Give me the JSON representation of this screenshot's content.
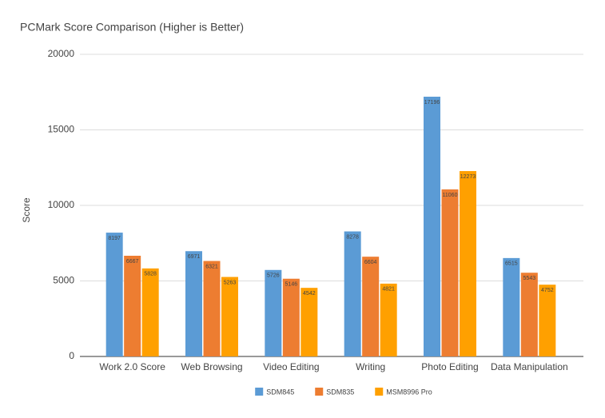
{
  "chart_data": {
    "type": "bar",
    "title": "PCMark Score Comparison (Higher is Better)",
    "y_label": "Score",
    "categories": [
      "Work 2.0 Score",
      "Web Browsing",
      "Video Editing",
      "Writing",
      "Photo Editing",
      "Data Manipulation"
    ],
    "series": [
      {
        "name": "SDM845",
        "color": "#5b9bd5",
        "values": [
          8197,
          6971,
          5726,
          8278,
          17196,
          6515
        ]
      },
      {
        "name": "SDM835",
        "color": "#ed7d31",
        "values": [
          6667,
          6321,
          5146,
          6604,
          11060,
          5543
        ]
      },
      {
        "name": "MSM8996 Pro",
        "color": "#ffa000",
        "values": [
          5828,
          5263,
          4542,
          4821,
          12273,
          4752
        ]
      }
    ],
    "ylim": [
      0,
      20000
    ],
    "yticks": [
      0,
      5000,
      10000,
      15000,
      20000
    ],
    "grid": true,
    "legend": "bottom",
    "data_labels": true
  }
}
